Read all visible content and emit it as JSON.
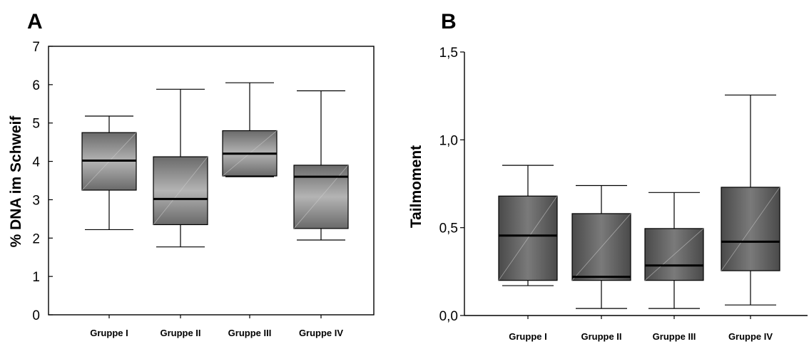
{
  "chart_data": [
    {
      "type": "boxplot",
      "panel_label": "A",
      "ylabel": "% DNA im Schweif",
      "xlabel": "",
      "ylim": [
        0,
        7
      ],
      "yticks": [
        0,
        1,
        2,
        3,
        4,
        5,
        6,
        7
      ],
      "ytick_labels": [
        "0",
        "1",
        "2",
        "3",
        "4",
        "5",
        "6",
        "7"
      ],
      "categories": [
        "Gruppe I",
        "Gruppe II",
        "Gruppe III",
        "Gruppe IV"
      ],
      "boxes": [
        {
          "min": 2.22,
          "q1": 3.25,
          "median": 4.02,
          "q3": 4.75,
          "max": 5.18
        },
        {
          "min": 1.77,
          "q1": 2.35,
          "median": 3.02,
          "q3": 4.12,
          "max": 5.88
        },
        {
          "min": 3.6,
          "q1": 3.62,
          "median": 4.2,
          "q3": 4.8,
          "max": 6.05
        },
        {
          "min": 1.95,
          "q1": 2.25,
          "median": 3.6,
          "q3": 3.9,
          "max": 5.84
        }
      ],
      "grid": false,
      "box_color": "#8c8c8c"
    },
    {
      "type": "boxplot",
      "panel_label": "B",
      "ylabel": "Tailmoment",
      "xlabel": "",
      "ylim": [
        0,
        1.5
      ],
      "yticks": [
        0,
        0.5,
        1.0,
        1.5
      ],
      "ytick_labels": [
        "0,0",
        "0,5",
        "1,0",
        "1,5"
      ],
      "categories": [
        "Gruppe I",
        "Gruppe II",
        "Gruppe III",
        "Gruppe IV"
      ],
      "boxes": [
        {
          "min": 0.17,
          "q1": 0.2,
          "median": 0.455,
          "q3": 0.68,
          "max": 0.855
        },
        {
          "min": 0.04,
          "q1": 0.2,
          "median": 0.22,
          "q3": 0.58,
          "max": 0.74
        },
        {
          "min": 0.04,
          "q1": 0.2,
          "median": 0.285,
          "q3": 0.495,
          "max": 0.7
        },
        {
          "min": 0.06,
          "q1": 0.255,
          "median": 0.42,
          "q3": 0.73,
          "max": 1.255
        }
      ],
      "grid": false,
      "box_color": "#555555"
    }
  ]
}
